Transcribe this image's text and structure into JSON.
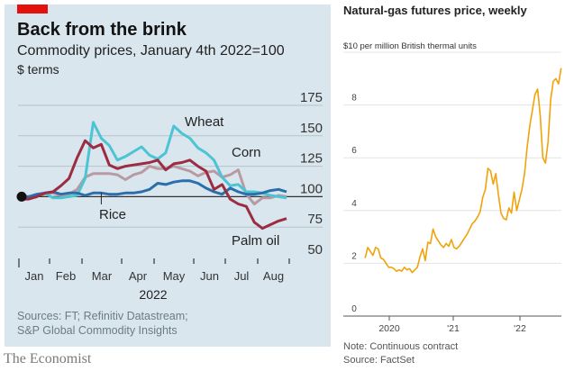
{
  "left": {
    "title": "Back from the brink",
    "subtitle": "Commodity prices, January 4th 2022=100",
    "subtitle2": "$ terms",
    "sources_line1": "Sources: FT; Refinitiv Datastream;",
    "sources_line2": "S&P Global Commodity Insights",
    "brand": "The Economist",
    "accent_color": "#e3120b",
    "background_color": "#dae6ee"
  },
  "right": {
    "title": "Natural-gas futures price, weekly",
    "units": "$10 per million British thermal units",
    "note": "Note: Continuous contract",
    "source": "Source: FactSet"
  },
  "chart_data": [
    {
      "type": "line",
      "title": "Back from the brink",
      "subtitle": "Commodity prices, January 4th 2022=100, $ terms",
      "xlabel": "2022",
      "ylabel": "",
      "ylim": [
        50,
        175
      ],
      "yticks": [
        50,
        75,
        100,
        125,
        150,
        175
      ],
      "xticks": [
        "Jan",
        "Feb",
        "Mar",
        "Apr",
        "May",
        "Jun",
        "Jul",
        "Aug"
      ],
      "x_week_range": [
        0,
        33
      ],
      "grid": true,
      "baseline": 100,
      "series": [
        {
          "name": "Wheat",
          "color": "#4cc4d4",
          "label_pos": [
            22,
            154
          ],
          "values": [
            100,
            100,
            101,
            103,
            99,
            99,
            100,
            101,
            115,
            161,
            148,
            142,
            130,
            133,
            137,
            141,
            134,
            131,
            136,
            158,
            152,
            148,
            140,
            136,
            130,
            116,
            109,
            110,
            104,
            104,
            103,
            101,
            100,
            99
          ]
        },
        {
          "name": "Corn",
          "color": "#b89aa2",
          "label_pos": [
            29,
            128
          ],
          "values": [
            100,
            100,
            101,
            102,
            103,
            101,
            102,
            106,
            116,
            119,
            119,
            119,
            118,
            114,
            118,
            120,
            125,
            123,
            123,
            125,
            123,
            121,
            117,
            120,
            121,
            116,
            118,
            122,
            102,
            94,
            99,
            99,
            101,
            100
          ]
        },
        {
          "name": "Palm oil",
          "color": "#9b2c42",
          "label_pos": [
            30,
            62
          ],
          "values": [
            98,
            98,
            100,
            103,
            104,
            109,
            115,
            132,
            146,
            140,
            143,
            126,
            123,
            125,
            126,
            127,
            128,
            130,
            122,
            127,
            128,
            130,
            125,
            121,
            106,
            110,
            98,
            94,
            92,
            79,
            74,
            77,
            80,
            82
          ]
        },
        {
          "name": "Rice",
          "color": "#2a6fab",
          "label_pos": [
            9,
            90
          ],
          "values": [
            100,
            100,
            102,
            103,
            104,
            102,
            103,
            103,
            101,
            103,
            103,
            102,
            102,
            103,
            103,
            104,
            106,
            111,
            110,
            112,
            113,
            113,
            111,
            107,
            104,
            102,
            107,
            104,
            102,
            102,
            103,
            105,
            106,
            104
          ]
        }
      ],
      "annotations": [
        {
          "text": "Rice",
          "pointer_at_week": 10
        }
      ]
    },
    {
      "type": "line",
      "title": "Natural-gas futures price, weekly",
      "ylabel": "$10 per million British thermal units",
      "ylim": [
        0,
        10
      ],
      "yticks": [
        0,
        2,
        4,
        6,
        8,
        10
      ],
      "xticks": [
        "2020",
        "'21",
        "'22"
      ],
      "xlim": [
        2019.6,
        2022.65
      ],
      "grid": true,
      "series": [
        {
          "name": "Natural-gas futures",
          "color": "#f0a30a",
          "x": [
            2019.63,
            2019.67,
            2019.71,
            2019.75,
            2019.79,
            2019.83,
            2019.87,
            2019.91,
            2019.95,
            2019.99,
            2020.03,
            2020.07,
            2020.11,
            2020.15,
            2020.19,
            2020.23,
            2020.27,
            2020.31,
            2020.35,
            2020.39,
            2020.43,
            2020.47,
            2020.51,
            2020.55,
            2020.59,
            2020.63,
            2020.67,
            2020.71,
            2020.75,
            2020.79,
            2020.83,
            2020.87,
            2020.91,
            2020.95,
            2020.99,
            2021.03,
            2021.07,
            2021.11,
            2021.15,
            2021.19,
            2021.23,
            2021.27,
            2021.31,
            2021.35,
            2021.39,
            2021.43,
            2021.47,
            2021.51,
            2021.55,
            2021.59,
            2021.63,
            2021.67,
            2021.71,
            2021.75,
            2021.79,
            2021.83,
            2021.87,
            2021.91,
            2021.95,
            2021.99,
            2022.03,
            2022.07,
            2022.11,
            2022.15,
            2022.19,
            2022.23,
            2022.27,
            2022.31,
            2022.35,
            2022.39,
            2022.43,
            2022.47,
            2022.51,
            2022.55,
            2022.59,
            2022.63
          ],
          "values": [
            2.2,
            2.6,
            2.45,
            2.3,
            2.6,
            2.55,
            2.2,
            2.15,
            2.0,
            1.85,
            1.85,
            1.8,
            1.7,
            1.75,
            1.7,
            1.85,
            1.75,
            1.8,
            1.65,
            1.75,
            1.85,
            2.25,
            2.55,
            2.1,
            2.8,
            2.75,
            3.3,
            3.0,
            2.85,
            2.7,
            2.6,
            2.75,
            2.65,
            2.9,
            2.6,
            2.55,
            2.65,
            2.8,
            2.95,
            3.1,
            3.3,
            3.5,
            3.6,
            3.75,
            3.95,
            4.5,
            4.8,
            5.6,
            5.5,
            5.0,
            5.4,
            4.6,
            3.9,
            3.7,
            3.65,
            4.1,
            3.9,
            4.7,
            4.0,
            4.4,
            4.8,
            5.4,
            6.4,
            7.2,
            7.8,
            8.4,
            8.6,
            7.6,
            6.0,
            5.8,
            6.6,
            8.2,
            8.9,
            9.0,
            8.8,
            9.4
          ]
        }
      ]
    }
  ]
}
